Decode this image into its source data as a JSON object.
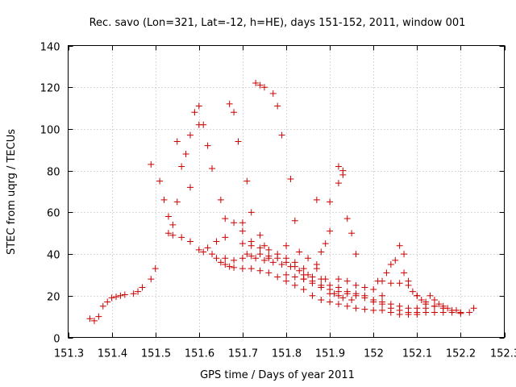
{
  "chart_data": {
    "type": "scatter",
    "title": "Rec. savo (Lon=321, Lat=-12, h=HE), days 151-152, 2011, window 001",
    "xlabel": "GPS time / Days of year 2011",
    "ylabel": "STEC from uqrg / TECUs",
    "xlim": [
      151.3,
      152.3
    ],
    "ylim": [
      0,
      140
    ],
    "xticks": [
      "151.3",
      "151.4",
      "151.5",
      "151.6",
      "151.7",
      "151.8",
      "151.9",
      "152",
      "152.1",
      "152.2",
      "152.3"
    ],
    "xtick_values": [
      151.3,
      151.4,
      151.5,
      151.6,
      151.7,
      151.8,
      151.9,
      152.0,
      152.1,
      152.2,
      152.3
    ],
    "yticks": [
      "0",
      "20",
      "40",
      "60",
      "80",
      "100",
      "120",
      "140"
    ],
    "ytick_values": [
      0,
      20,
      40,
      60,
      80,
      100,
      120,
      140
    ],
    "grid": true,
    "marker": "+",
    "color": "#cc0000",
    "series": [
      {
        "name": "STEC",
        "points": [
          [
            151.35,
            9
          ],
          [
            151.36,
            8
          ],
          [
            151.37,
            10
          ],
          [
            151.38,
            15
          ],
          [
            151.39,
            17
          ],
          [
            151.4,
            19
          ],
          [
            151.41,
            19.5
          ],
          [
            151.42,
            20
          ],
          [
            151.43,
            20.5
          ],
          [
            151.45,
            21
          ],
          [
            151.46,
            22
          ],
          [
            151.47,
            24
          ],
          [
            151.49,
            28
          ],
          [
            151.5,
            33
          ],
          [
            151.49,
            83
          ],
          [
            151.51,
            75
          ],
          [
            151.52,
            66
          ],
          [
            151.53,
            58
          ],
          [
            151.54,
            54
          ],
          [
            151.55,
            65
          ],
          [
            151.56,
            82
          ],
          [
            151.57,
            88
          ],
          [
            151.58,
            97
          ],
          [
            151.59,
            108
          ],
          [
            151.6,
            111
          ],
          [
            151.6,
            102
          ],
          [
            151.61,
            102
          ],
          [
            151.58,
            72
          ],
          [
            151.55,
            94
          ],
          [
            151.53,
            50
          ],
          [
            151.54,
            49
          ],
          [
            151.56,
            48
          ],
          [
            151.58,
            46
          ],
          [
            151.6,
            42
          ],
          [
            151.61,
            41
          ],
          [
            151.62,
            43
          ],
          [
            151.63,
            40
          ],
          [
            151.64,
            38
          ],
          [
            151.65,
            36
          ],
          [
            151.66,
            35
          ],
          [
            151.67,
            34
          ],
          [
            151.68,
            33.5
          ],
          [
            151.7,
            33
          ],
          [
            151.72,
            33
          ],
          [
            151.74,
            32
          ],
          [
            151.76,
            31
          ],
          [
            151.78,
            29
          ],
          [
            151.8,
            27
          ],
          [
            151.82,
            25
          ],
          [
            151.84,
            23
          ],
          [
            151.86,
            20
          ],
          [
            151.88,
            18
          ],
          [
            151.9,
            17
          ],
          [
            151.92,
            16
          ],
          [
            151.94,
            15
          ],
          [
            151.96,
            14
          ],
          [
            151.98,
            13.5
          ],
          [
            152.0,
            13
          ],
          [
            152.02,
            13
          ],
          [
            152.04,
            12
          ],
          [
            152.06,
            11
          ],
          [
            152.08,
            11
          ],
          [
            152.1,
            11
          ],
          [
            152.12,
            12
          ],
          [
            152.14,
            12
          ],
          [
            152.16,
            12
          ],
          [
            152.18,
            12
          ],
          [
            152.2,
            11.5
          ],
          [
            152.22,
            12
          ],
          [
            152.23,
            14
          ],
          [
            151.62,
            92
          ],
          [
            151.63,
            81
          ],
          [
            151.65,
            66
          ],
          [
            151.66,
            57
          ],
          [
            151.67,
            112
          ],
          [
            151.68,
            108
          ],
          [
            151.69,
            94
          ],
          [
            151.7,
            55
          ],
          [
            151.71,
            75
          ],
          [
            151.72,
            60
          ],
          [
            151.73,
            122
          ],
          [
            151.74,
            121
          ],
          [
            151.75,
            120
          ],
          [
            151.77,
            117
          ],
          [
            151.78,
            111
          ],
          [
            151.79,
            97
          ],
          [
            151.81,
            76
          ],
          [
            151.82,
            56
          ],
          [
            151.72,
            46
          ],
          [
            151.7,
            51
          ],
          [
            151.68,
            55
          ],
          [
            151.66,
            48
          ],
          [
            151.64,
            46
          ],
          [
            151.71,
            40
          ],
          [
            151.73,
            38
          ],
          [
            151.75,
            37
          ],
          [
            151.77,
            36
          ],
          [
            151.79,
            35
          ],
          [
            151.81,
            34
          ],
          [
            151.83,
            32
          ],
          [
            151.85,
            30
          ],
          [
            151.86,
            29
          ],
          [
            151.87,
            35
          ],
          [
            151.88,
            41
          ],
          [
            151.89,
            45
          ],
          [
            151.87,
            66
          ],
          [
            151.9,
            65
          ],
          [
            151.92,
            74
          ],
          [
            151.93,
            80
          ],
          [
            151.93,
            78
          ],
          [
            151.92,
            82
          ],
          [
            151.94,
            57
          ],
          [
            151.95,
            50
          ],
          [
            151.96,
            40
          ],
          [
            151.9,
            51
          ],
          [
            151.92,
            28
          ],
          [
            151.94,
            27
          ],
          [
            151.96,
            25
          ],
          [
            151.98,
            24
          ],
          [
            152.0,
            23
          ],
          [
            152.01,
            27
          ],
          [
            152.02,
            27
          ],
          [
            152.03,
            31
          ],
          [
            152.04,
            35
          ],
          [
            152.05,
            37
          ],
          [
            152.06,
            44
          ],
          [
            152.07,
            40
          ],
          [
            152.07,
            31
          ],
          [
            152.08,
            27
          ],
          [
            152.09,
            22
          ],
          [
            152.1,
            20
          ],
          [
            152.11,
            18
          ],
          [
            152.12,
            17
          ],
          [
            152.13,
            20
          ],
          [
            152.14,
            18
          ],
          [
            152.15,
            16
          ],
          [
            152.16,
            15
          ],
          [
            152.17,
            14
          ],
          [
            152.19,
            13
          ],
          [
            152.2,
            12
          ],
          [
            151.66,
            38
          ],
          [
            151.68,
            37
          ],
          [
            151.7,
            38
          ],
          [
            151.72,
            39
          ],
          [
            151.74,
            40
          ],
          [
            151.76,
            39
          ],
          [
            151.78,
            38
          ],
          [
            151.8,
            36
          ],
          [
            151.82,
            34
          ],
          [
            151.84,
            30
          ],
          [
            151.86,
            27
          ],
          [
            151.88,
            25
          ],
          [
            151.9,
            23
          ],
          [
            151.92,
            22
          ],
          [
            151.94,
            21
          ],
          [
            151.96,
            20
          ],
          [
            151.98,
            19
          ],
          [
            152.0,
            18
          ],
          [
            152.02,
            17
          ],
          [
            152.04,
            16
          ],
          [
            152.06,
            15
          ],
          [
            152.08,
            14
          ],
          [
            152.1,
            14
          ],
          [
            152.12,
            14
          ],
          [
            152.14,
            15
          ],
          [
            152.16,
            14
          ],
          [
            152.18,
            13
          ],
          [
            151.8,
            30
          ],
          [
            151.82,
            29
          ],
          [
            151.84,
            28
          ],
          [
            151.86,
            26
          ],
          [
            151.88,
            24
          ],
          [
            151.9,
            21
          ],
          [
            151.92,
            20
          ],
          [
            152.02,
            20
          ],
          [
            152.04,
            26
          ],
          [
            152.06,
            26
          ],
          [
            152.08,
            25
          ],
          [
            152.1,
            20
          ],
          [
            152.12,
            16
          ],
          [
            152.14,
            15
          ],
          [
            151.84,
            28
          ],
          [
            151.86,
            29
          ],
          [
            151.88,
            28
          ],
          [
            151.9,
            25
          ],
          [
            151.92,
            24
          ],
          [
            151.94,
            22
          ],
          [
            151.96,
            21
          ],
          [
            151.98,
            20
          ],
          [
            152.0,
            17
          ],
          [
            152.02,
            16
          ],
          [
            152.04,
            14
          ],
          [
            152.06,
            13
          ],
          [
            152.08,
            12
          ],
          [
            152.1,
            12
          ],
          [
            151.74,
            49
          ],
          [
            151.75,
            44
          ],
          [
            151.76,
            38
          ],
          [
            151.7,
            45
          ],
          [
            151.72,
            44
          ],
          [
            151.74,
            43
          ],
          [
            151.76,
            42
          ],
          [
            151.78,
            40
          ],
          [
            151.8,
            38
          ],
          [
            151.82,
            36
          ],
          [
            151.84,
            33
          ],
          [
            151.8,
            44
          ],
          [
            151.83,
            41
          ],
          [
            151.85,
            38
          ],
          [
            151.87,
            33
          ],
          [
            151.89,
            28
          ],
          [
            151.91,
            21
          ],
          [
            151.93,
            19
          ],
          [
            151.95,
            18
          ]
        ]
      }
    ]
  }
}
